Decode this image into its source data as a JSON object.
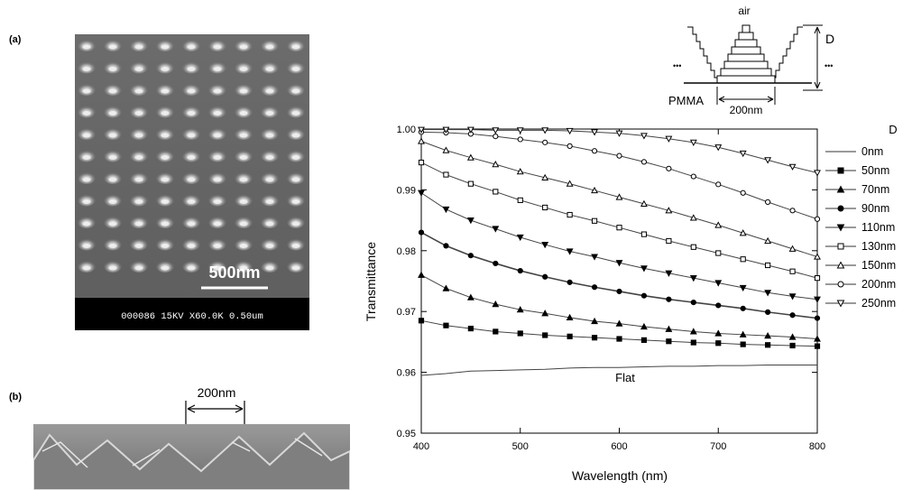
{
  "panels": {
    "a": "(a)",
    "b": "(b)"
  },
  "sem": {
    "scale_label": "500nm",
    "info_bar": "000086 15KV X60.0K 0.50um",
    "spacing_label": "200nm"
  },
  "schematic": {
    "top_label": "air",
    "bottom_label": "PMMA",
    "width_label": "200nm",
    "height_label": "D",
    "ellipsis": "•••"
  },
  "chart_data": {
    "type": "line",
    "xlabel": "Wavelength (nm)",
    "ylabel": "Transmittance",
    "xlim": [
      400,
      800
    ],
    "ylim": [
      0.95,
      1.0
    ],
    "xticks": [
      "400",
      "500",
      "600",
      "700",
      "800"
    ],
    "yticks": [
      "0.95",
      "0.96",
      "0.97",
      "0.98",
      "0.99",
      "1.00"
    ],
    "legend_title": "D",
    "legend_position": "right",
    "annotation": "Flat",
    "x": [
      400,
      425,
      450,
      475,
      500,
      525,
      550,
      575,
      600,
      625,
      650,
      675,
      700,
      725,
      750,
      775,
      800
    ],
    "series": [
      {
        "name": "0nm",
        "marker": "none",
        "values": [
          0.9595,
          0.9598,
          0.9602,
          0.9603,
          0.9604,
          0.9605,
          0.9607,
          0.9608,
          0.9608,
          0.9609,
          0.961,
          0.961,
          0.9611,
          0.9611,
          0.9612,
          0.9612,
          0.9612
        ]
      },
      {
        "name": "50nm",
        "marker": "square-filled",
        "values": [
          0.9685,
          0.9677,
          0.9672,
          0.9667,
          0.9664,
          0.9661,
          0.9659,
          0.9657,
          0.9655,
          0.9653,
          0.9651,
          0.9649,
          0.9648,
          0.9646,
          0.9645,
          0.9644,
          0.9643
        ]
      },
      {
        "name": "70nm",
        "marker": "triangle-up-filled",
        "values": [
          0.976,
          0.9738,
          0.9723,
          0.9712,
          0.9703,
          0.9697,
          0.969,
          0.9684,
          0.968,
          0.9675,
          0.9671,
          0.9667,
          0.9664,
          0.9662,
          0.966,
          0.9658,
          0.9655
        ]
      },
      {
        "name": "90nm",
        "marker": "circle-filled",
        "values": [
          0.983,
          0.9808,
          0.9792,
          0.9779,
          0.9767,
          0.9757,
          0.9748,
          0.974,
          0.9733,
          0.9726,
          0.972,
          0.9715,
          0.971,
          0.9705,
          0.9699,
          0.9694,
          0.9689
        ]
      },
      {
        "name": "110nm",
        "marker": "triangle-down-filled",
        "values": [
          0.9895,
          0.9868,
          0.985,
          0.9836,
          0.9822,
          0.981,
          0.9799,
          0.979,
          0.978,
          0.9771,
          0.9763,
          0.9755,
          0.9747,
          0.9739,
          0.9731,
          0.9725,
          0.972
        ]
      },
      {
        "name": "130nm",
        "marker": "square-open",
        "values": [
          0.9945,
          0.9925,
          0.991,
          0.9897,
          0.9883,
          0.9871,
          0.9859,
          0.9849,
          0.9838,
          0.9827,
          0.9816,
          0.9806,
          0.9796,
          0.9786,
          0.9776,
          0.9766,
          0.9755
        ]
      },
      {
        "name": "150nm",
        "marker": "triangle-up-open",
        "values": [
          0.998,
          0.9965,
          0.9953,
          0.9942,
          0.993,
          0.992,
          0.991,
          0.9899,
          0.9888,
          0.9877,
          0.9866,
          0.9854,
          0.9842,
          0.9829,
          0.9816,
          0.9803,
          0.979
        ]
      },
      {
        "name": "200nm",
        "marker": "circle-open",
        "values": [
          0.9995,
          0.9994,
          0.9992,
          0.9988,
          0.9983,
          0.9978,
          0.9972,
          0.9964,
          0.9956,
          0.9946,
          0.9935,
          0.9922,
          0.9909,
          0.9895,
          0.988,
          0.9866,
          0.9852
        ]
      },
      {
        "name": "250nm",
        "marker": "triangle-down-open",
        "values": [
          0.9999,
          0.9999,
          0.9999,
          0.9998,
          0.9998,
          0.9998,
          0.9997,
          0.9995,
          0.9993,
          0.9989,
          0.9984,
          0.9978,
          0.997,
          0.996,
          0.9949,
          0.9938,
          0.9928
        ]
      }
    ]
  }
}
